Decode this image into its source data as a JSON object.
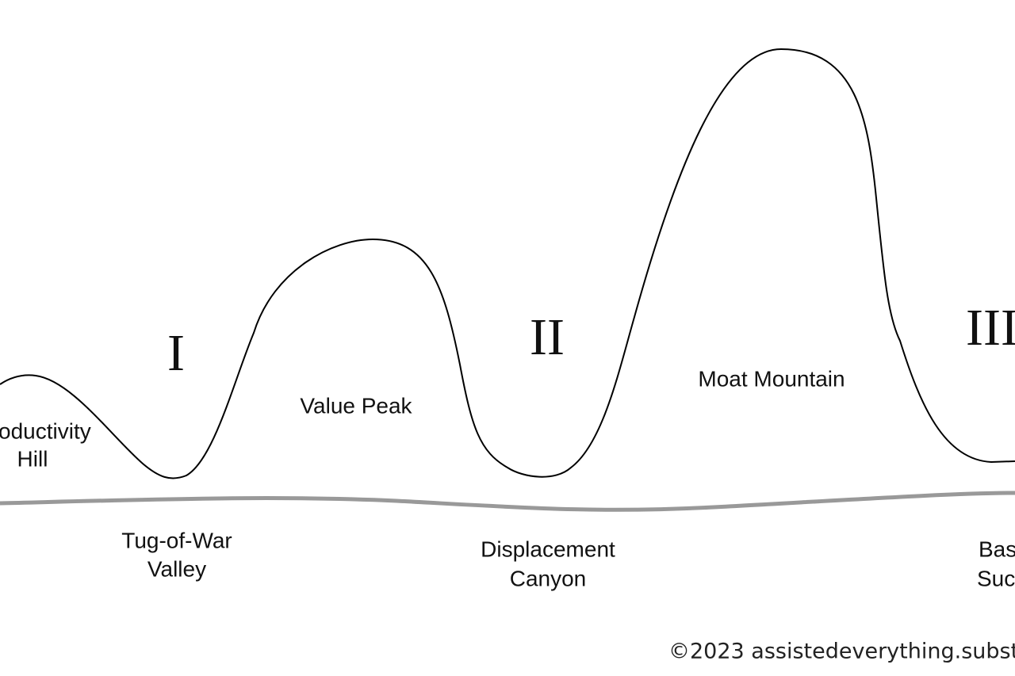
{
  "phases": [
    "I",
    "II",
    "III"
  ],
  "peaks": [
    {
      "lines": [
        "oductivity",
        "Hill"
      ]
    },
    {
      "lines": [
        "Value Peak"
      ]
    },
    {
      "lines": [
        "Moat Mountain"
      ]
    }
  ],
  "valleys": [
    {
      "lines": [
        "Tug-of-War",
        "Valley"
      ]
    },
    {
      "lines": [
        "Displacement",
        "Canyon"
      ]
    },
    {
      "lines": [
        "Bas",
        "Suc"
      ]
    }
  ],
  "copyright": "©2023 assistedeverything.subst"
}
